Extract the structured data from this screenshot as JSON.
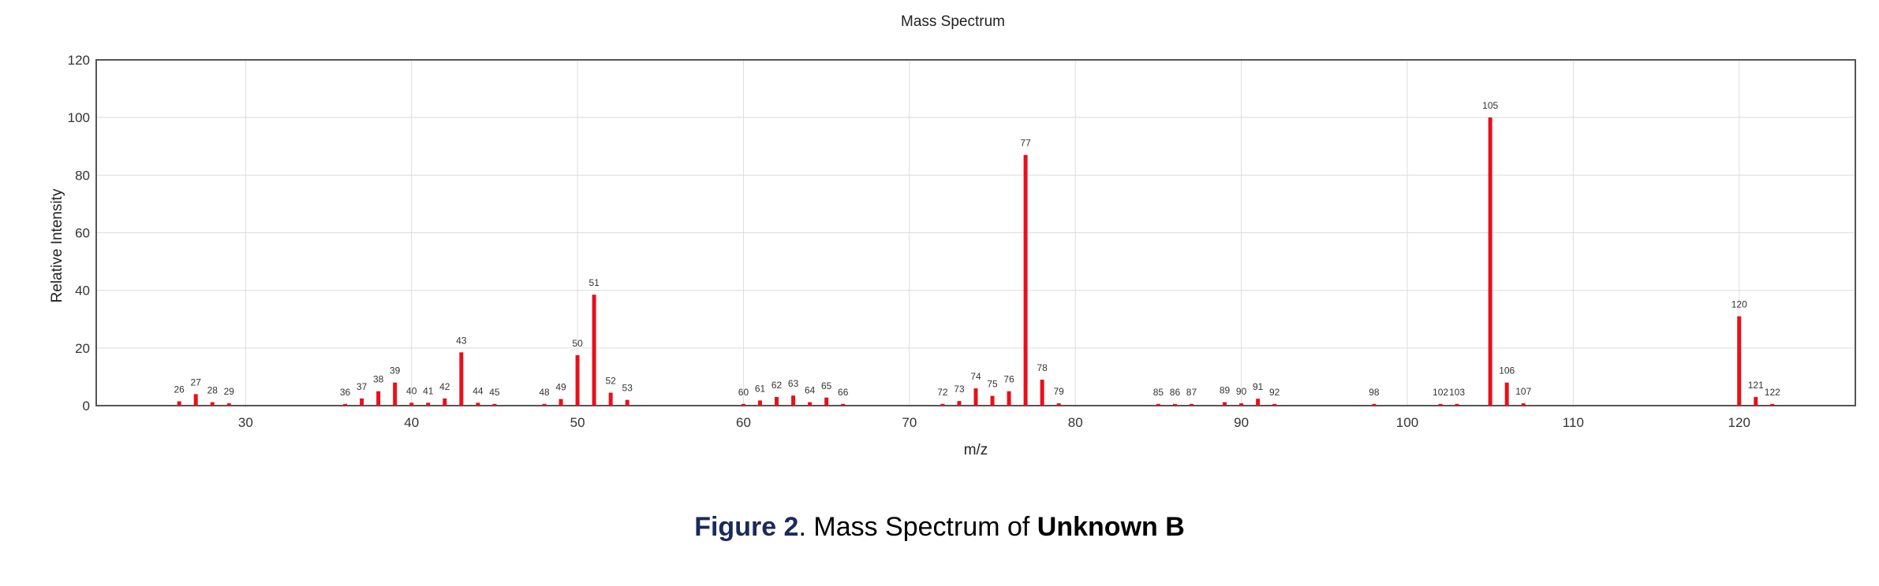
{
  "caption": {
    "figure_label": "Figure 2",
    "separator": ". ",
    "text": "Mass Spectrum of ",
    "bold_text": "Unknown B",
    "label_color": "#1a2a5a"
  },
  "chart_data": {
    "type": "bar",
    "title": "Mass Spectrum",
    "xlabel": "m/z",
    "ylabel": "Relative Intensity",
    "xlim": [
      21,
      127
    ],
    "ylim": [
      0,
      120
    ],
    "xticks": [
      30,
      40,
      50,
      60,
      70,
      80,
      90,
      100,
      110,
      120
    ],
    "yticks": [
      0,
      20,
      40,
      60,
      80,
      100,
      120
    ],
    "grid": true,
    "bar_color": "#e8101a",
    "x": [
      26,
      27,
      28,
      29,
      36,
      37,
      38,
      39,
      40,
      41,
      42,
      43,
      44,
      45,
      48,
      49,
      50,
      51,
      52,
      53,
      60,
      61,
      62,
      63,
      64,
      65,
      66,
      72,
      73,
      74,
      75,
      76,
      77,
      78,
      79,
      85,
      86,
      87,
      89,
      90,
      91,
      92,
      98,
      102,
      103,
      105,
      106,
      107,
      120,
      121,
      122
    ],
    "values": [
      1.5,
      4,
      1.2,
      0.8,
      0.6,
      2.5,
      5,
      8,
      1,
      1,
      2.5,
      18.5,
      1,
      0.6,
      0.6,
      2.3,
      17.5,
      38.5,
      4.5,
      2,
      0.6,
      1.8,
      3,
      3.5,
      1.2,
      2.8,
      0.6,
      0.6,
      1.6,
      6,
      3.4,
      5,
      87,
      9,
      0.8,
      0.6,
      0.6,
      0.6,
      1.2,
      0.8,
      2.4,
      0.6,
      0.6,
      0.6,
      0.6,
      100,
      8,
      0.8,
      31,
      3,
      0.6
    ]
  }
}
